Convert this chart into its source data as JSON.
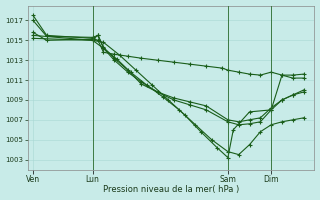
{
  "background_color": "#c8ebe8",
  "grid_color": "#a8d8d4",
  "line_color": "#1a5e1a",
  "marker_color": "#1a5e1a",
  "xlabel": "Pression niveau de la mer( hPa )",
  "ylim": [
    1002.0,
    1018.5
  ],
  "yticks": [
    1003,
    1005,
    1007,
    1009,
    1011,
    1013,
    1015,
    1017
  ],
  "xtick_labels": [
    "Ven",
    "Lun",
    "Sam",
    "Dim"
  ],
  "xtick_positions": [
    0.0,
    0.22,
    0.72,
    0.88
  ],
  "vline_positions": [
    0.22,
    0.72,
    0.88
  ],
  "series": [
    {
      "x": [
        0.0,
        0.05,
        0.22,
        0.24,
        0.26,
        0.3,
        0.35,
        0.4,
        0.46,
        0.52,
        0.58,
        0.64,
        0.7,
        0.72,
        0.76,
        0.8,
        0.84,
        0.88,
        0.92,
        0.96,
        1.0
      ],
      "y": [
        1017.5,
        1015.5,
        1015.2,
        1015.0,
        1013.8,
        1013.6,
        1013.4,
        1013.2,
        1013.0,
        1012.8,
        1012.6,
        1012.4,
        1012.2,
        1012.0,
        1011.8,
        1011.6,
        1011.5,
        1011.8,
        1011.5,
        1011.5,
        1011.6
      ]
    },
    {
      "x": [
        0.0,
        0.05,
        0.22,
        0.24,
        0.26,
        0.3,
        0.35,
        0.4,
        0.46,
        0.52,
        0.58,
        0.64,
        0.72,
        0.76,
        0.8,
        0.84,
        0.88,
        0.92,
        0.96,
        1.0
      ],
      "y": [
        1017.0,
        1015.4,
        1015.3,
        1015.5,
        1014.2,
        1013.0,
        1011.8,
        1010.8,
        1009.8,
        1009.0,
        1008.5,
        1008.0,
        1006.8,
        1006.5,
        1006.6,
        1006.8,
        1008.0,
        1009.0,
        1009.5,
        1009.8
      ]
    },
    {
      "x": [
        0.0,
        0.05,
        0.22,
        0.24,
        0.26,
        0.3,
        0.35,
        0.4,
        0.46,
        0.52,
        0.58,
        0.64,
        0.72,
        0.76,
        0.8,
        0.84,
        0.88,
        0.92,
        0.96,
        1.0
      ],
      "y": [
        1015.8,
        1015.0,
        1015.1,
        1015.5,
        1014.3,
        1013.2,
        1012.0,
        1010.6,
        1009.8,
        1009.2,
        1008.8,
        1008.4,
        1007.0,
        1006.8,
        1007.0,
        1007.2,
        1008.2,
        1009.0,
        1009.5,
        1010.0
      ]
    },
    {
      "x": [
        0.0,
        0.22,
        0.26,
        0.31,
        0.36,
        0.42,
        0.48,
        0.54,
        0.6,
        0.66,
        0.72,
        0.76,
        0.8,
        0.84,
        0.88,
        0.92,
        0.96,
        1.0
      ],
      "y": [
        1015.5,
        1015.0,
        1014.2,
        1013.1,
        1011.8,
        1010.5,
        1009.3,
        1008.0,
        1006.5,
        1005.0,
        1003.8,
        1003.5,
        1004.5,
        1005.8,
        1006.5,
        1006.8,
        1007.0,
        1007.2
      ]
    },
    {
      "x": [
        0.0,
        0.22,
        0.26,
        0.32,
        0.38,
        0.44,
        0.5,
        0.56,
        0.62,
        0.68,
        0.72,
        0.74,
        0.8,
        0.88,
        0.92,
        0.96,
        1.0
      ],
      "y": [
        1015.2,
        1015.0,
        1014.8,
        1013.5,
        1012.0,
        1010.5,
        1009.0,
        1007.5,
        1005.8,
        1004.2,
        1003.2,
        1006.0,
        1007.8,
        1008.0,
        1011.5,
        1011.2,
        1011.2
      ]
    }
  ]
}
